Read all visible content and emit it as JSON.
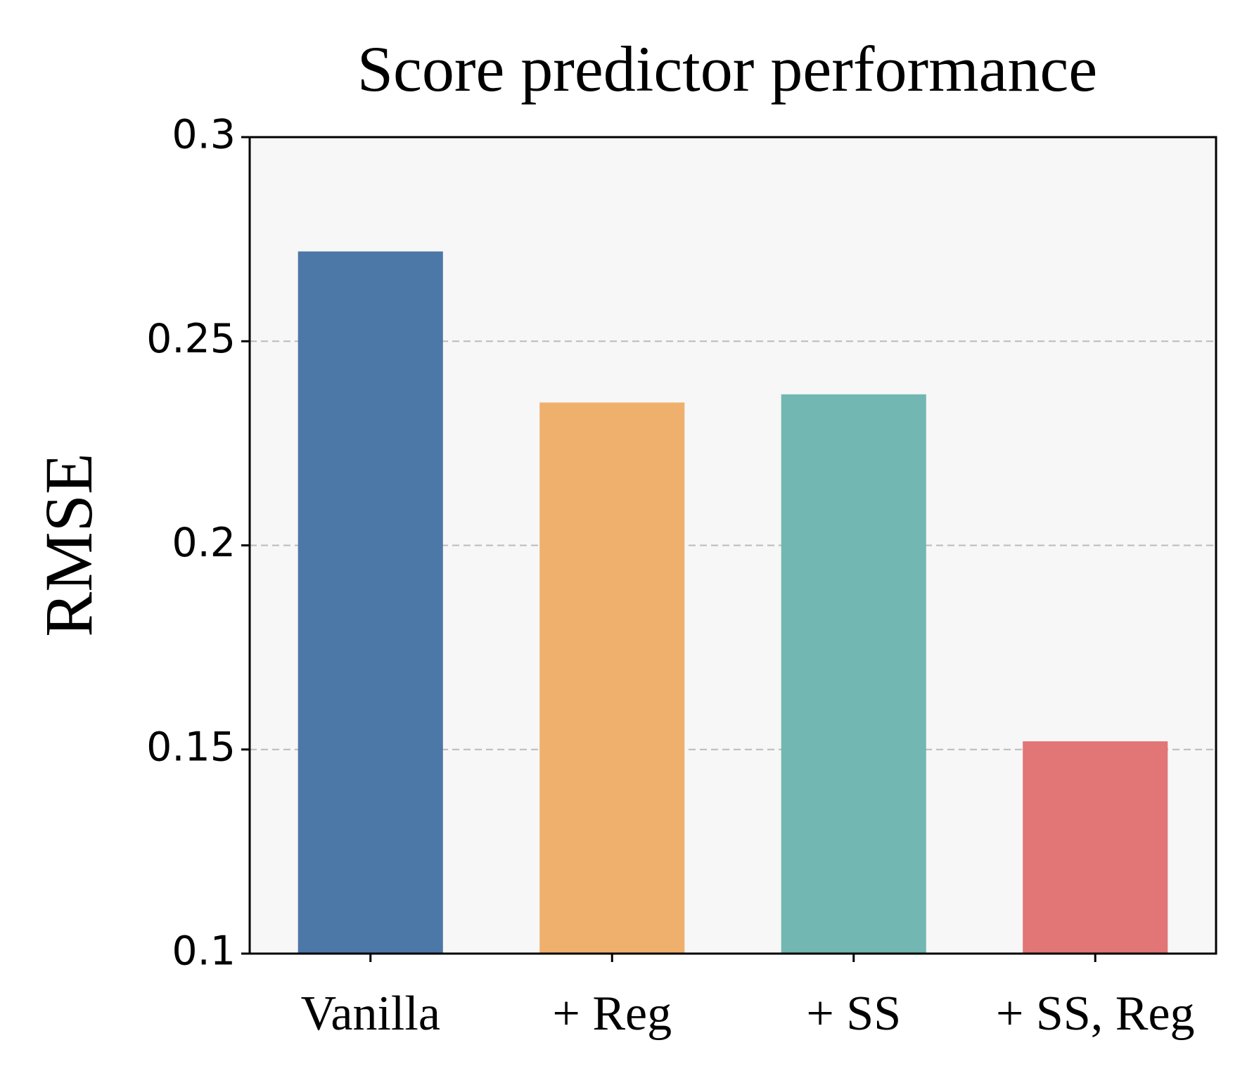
{
  "chart_data": {
    "type": "bar",
    "title": "Score predictor performance",
    "y_label": "RMSE",
    "categories": [
      "Vanilla",
      "+ Reg",
      "+ SS",
      "+ SS, Reg"
    ],
    "values": [
      0.272,
      0.235,
      0.237,
      0.152
    ],
    "colors": [
      "#4c78a8",
      "#f0b06d",
      "#72b7b2",
      "#e27575"
    ],
    "ylim": [
      0.1,
      0.3
    ],
    "yticks": [
      0.1,
      0.15,
      0.2,
      0.25,
      0.3
    ],
    "grid": true
  }
}
